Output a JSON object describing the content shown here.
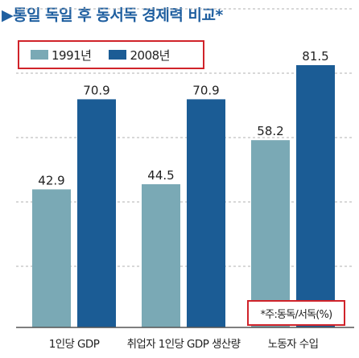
{
  "title": "▶통일 독일 후 동서독 경제력 비교*",
  "note": "*주:동독/서독(%)",
  "colors": {
    "series1991": "#7aa9b5",
    "series2008": "#1b5c95",
    "grid": "#b0b0b0",
    "axis": "#555555"
  },
  "chart_data": {
    "type": "bar",
    "categories": [
      "1인당 GDP",
      "취업자 1인당 GDP 생산량",
      "노동자 수입"
    ],
    "series": [
      {
        "name": "1991년",
        "values": [
          42.9,
          44.5,
          58.2
        ]
      },
      {
        "name": "2008년",
        "values": [
          70.9,
          70.9,
          81.5
        ]
      }
    ],
    "value_labels": [
      [
        "42.9",
        "44.5",
        "58.2"
      ],
      [
        "70.9",
        "70.9",
        "81.5"
      ]
    ],
    "ylim": [
      0,
      100
    ],
    "grid": true,
    "legend_position": "top-left",
    "xlabel": "",
    "ylabel": ""
  }
}
